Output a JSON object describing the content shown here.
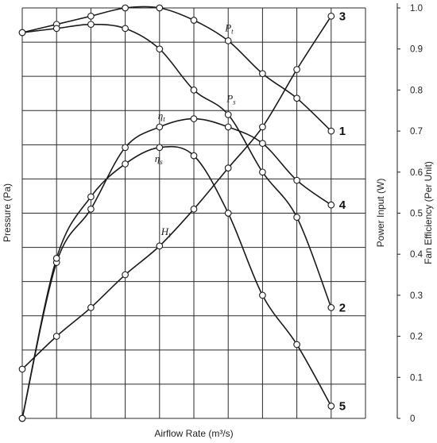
{
  "chart_data": {
    "type": "line",
    "xlabel": "Airflow Rate (m³/s)",
    "ylabel_left": "Pressure (Pa)",
    "ylabel_right_inner": "Power Input (W)",
    "ylabel_right_outer": "Fan Efficiency (Per Unit)",
    "x_range": [
      0,
      10
    ],
    "y_range": [
      0,
      1.0
    ],
    "right_axis_ticks": [
      "1.0",
      "0.9",
      "0.8",
      "0.7",
      "0.6",
      "0.5",
      "0.4",
      "0.3",
      "0.2",
      "0.1",
      "0"
    ],
    "grid": true,
    "series": [
      {
        "label": "P",
        "label_sub": "t",
        "number": "1",
        "points": [
          [
            0,
            0.94
          ],
          [
            1,
            0.96
          ],
          [
            2,
            0.98
          ],
          [
            3,
            1.0
          ],
          [
            4,
            1.0
          ],
          [
            5,
            0.97
          ],
          [
            6,
            0.92
          ],
          [
            7,
            0.84
          ],
          [
            8,
            0.78
          ],
          [
            9,
            0.7
          ]
        ]
      },
      {
        "label": "P",
        "label_sub": "s",
        "number": "2",
        "points": [
          [
            0,
            0.94
          ],
          [
            1,
            0.95
          ],
          [
            2,
            0.96
          ],
          [
            3,
            0.95
          ],
          [
            4,
            0.9
          ],
          [
            5,
            0.8
          ],
          [
            6,
            0.74
          ],
          [
            7,
            0.6
          ],
          [
            8,
            0.49
          ],
          [
            9,
            0.27
          ]
        ]
      },
      {
        "label": "η",
        "label_sub": "t",
        "number": "4",
        "points": [
          [
            0,
            0
          ],
          [
            1,
            0.38
          ],
          [
            2,
            0.51
          ],
          [
            3,
            0.66
          ],
          [
            4,
            0.71
          ],
          [
            5,
            0.73
          ],
          [
            6,
            0.71
          ],
          [
            7,
            0.67
          ],
          [
            8,
            0.58
          ],
          [
            9,
            0.52
          ]
        ]
      },
      {
        "label": "η",
        "label_sub": "s",
        "number": "5",
        "points": [
          [
            0,
            0
          ],
          [
            1,
            0.39
          ],
          [
            2,
            0.54
          ],
          [
            3,
            0.62
          ],
          [
            4,
            0.66
          ],
          [
            5,
            0.64
          ],
          [
            6,
            0.5
          ],
          [
            7,
            0.3
          ],
          [
            8,
            0.18
          ],
          [
            9,
            0.03
          ]
        ]
      },
      {
        "label": "H",
        "label_sub": "t",
        "number": "3",
        "points": [
          [
            0,
            0.12
          ],
          [
            1,
            0.2
          ],
          [
            2,
            0.27
          ],
          [
            3,
            0.35
          ],
          [
            4,
            0.42
          ],
          [
            5,
            0.51
          ],
          [
            6,
            0.61
          ],
          [
            7,
            0.71
          ],
          [
            8,
            0.85
          ],
          [
            9,
            0.98
          ]
        ]
      }
    ]
  }
}
